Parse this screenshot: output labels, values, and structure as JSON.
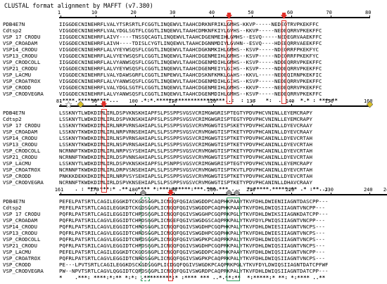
{
  "title": "CLUSTAL format alignment by MAFFT (v7.380)",
  "colors": {
    "red_marker": "#e0302a",
    "green_marker": "#2a9a5a",
    "grey_marker": "#9a9a9a",
    "yellow_marker": "#d8c02a"
  },
  "blocks": [
    {
      "ruler_labels": [
        "1",
        "10",
        "20",
        "30",
        "40",
        "50",
        "60",
        "70",
        "80"
      ],
      "rows": [
        {
          "name": "PDB4E7N",
          "seq": "IIGGDECNINEHRFLVALYTSRSRTLFCGGTLINQEWVLTAAHCDRKNFRIKLGMHS-KKVP-----NEDEQTRVPKEKFFC"
        },
        {
          "name": "Cdtsp2",
          "seq": "VIGGDECNINEHRFLVALYDGLSGTFLCGGTLINQEWVLTAAHCDMKNFKIYLGVHS--KKVP-----NEDEQRRVPKEKFFC"
        },
        {
          "name": "VSP 17 CRODU",
          "seq": "IIGGDECNINEHRFLAIVY----TNSSQCAGTLINQEWVLTAAHCDGENMEIHLGMHS--ESVQ-----NEDEGRVAAEKFFC"
        },
        {
          "name": "VSP_CROADAM",
          "seq": "VIGGDECNINEHRFLAIVH----TDISLCYGTLINQEWVLTAAHCDGNNMDIYLGVHN--ESVQ----HDEEQRRVAEEKFFC"
        },
        {
          "name": "VSP14_CRODU",
          "seq": "VIGGDECNINEHRFLALVYEYWSQSFLCGGTLINQEWVLTAAHCDGKNMKIHLGMHS--KSVP-----NDEQRRFPKEKFYC"
        },
        {
          "name": "VSP13_CRODU",
          "seq": "VIGGDECNINEHRFLALVYEYWSQSFLCGGTLINQEWVLTAAHCDGENMEIHLGMHS--KSVP-----NDEQRRFPKEKFYC"
        },
        {
          "name": "VSP_CRODCOLL",
          "seq": "IIGGDECNINEHRFLALVYANWSQSFLCGGTLINQEWVLTAAHCDGENMDIHLGMHS--KSVP-----NDDEQRRVPKEKFFC"
        },
        {
          "name": "VSP21_CRODU",
          "seq": "VIGGDECNINEHRFLALVYEYWSQSFLCGGTLINQEWVLTAAHCDGENMEIYLGIHS--KSVP-----NDDEQRRVPKEKFFC"
        },
        {
          "name": "VSP_LACMU",
          "seq": "VIGGDECNINEHRFLVALYDAWSGRFLCGGTLINPEWVLTAAHCDSKNFKMKLGAHS--KKVL-----NEDEQIRNPKEKFIC"
        },
        {
          "name": "VSP_CROATROX",
          "seq": "VIGGDECNINEHRFLALVYANWSQSFLCGGTLINQEWVLTAAHCDGENMDIHLGIHS--KSVP-----NEDEQRRVPKEKFFC"
        },
        {
          "name": "VSP_CRODD",
          "seq": "VIGGDECNINEHRFLVALYDGLSGTFLCGGTLINQEWVLTAAHCDGENMEIHLGMHS--KKVP-----NEDEQRRVPKEKFFC"
        },
        {
          "name": "VSP_CRODVEGRA",
          "seq": "VIGGDECNINEHRFLALVYANWSQSFLCGGTLINQEWVLTAAHCDGENMDIHLGMHS--KSVP-----NEDEQRRVPKEKFFC"
        }
      ],
      "consensus": ":****.**********...       .*:*.*****:****************..:  :  .:   *:  .   .  *.* : ***:**"
    },
    {
      "ruler_labels": [
        "81",
        "90",
        "100",
        "110",
        "120",
        "130",
        "140",
        "150",
        "160"
      ],
      "rows": [
        {
          "name": "PDB4E7N",
          "seq": "LSSKNYTLWDKDIMLIRLDSPVKNSKHIAPFSLPSSPPSVGSVCRIMGWGRISPTEGTYPDVPHCVNINLLEYEMCRAPY"
        },
        {
          "name": "Cdtsp2",
          "seq": "LSSKNYTLWDKDIMLIRLDSPVKNSKHIAPFSLPSSPPSVGSVCRIMGWGRISPTEGTYPDVPHCVNINLLEYEMCRAPY"
        },
        {
          "name": "VSP 17 CRODU",
          "seq": "LSSKNYTKWDKDIMLIRLNRPVRNSAHIAPLSLPSSPPSVGSVCRVMGWGTISPSKETYPDVPHCANINLLDYEVCRAAY"
        },
        {
          "name": "VSP_CROADAM",
          "seq": "LSSKNYTKWDKDIMLIRLNRPVRNSEHIAPLSLPSSPPSVGSVCRVMGWGTISPTKETYPDVPHCANINLLDYEVCRAAY"
        },
        {
          "name": "VSP14_CRODU",
          "seq": "LSSKNYTKWDKDIMLIRLNSPVRNSAHIAPLSLPSSPPSVGSVCRIMGWGTISPTKETYPDVPHCANINLLDYEVCRTAH"
        },
        {
          "name": "VSP13_CRODU",
          "seq": "LSSKNYTKWDKDIMLIRLNSPVRNSAHIAPLSLPSSPPSVGSVCRIMGWGTISPTKETYPDVPHCANINLLDYEVCRTAH"
        },
        {
          "name": "VSP_CRODCOLL",
          "seq": "NCRNNFTKWDKDIMLIRLNRPVSYSEHIAPLSLPSSPPSVGSVCRVMGWGTISPTKETYPDVPHCANINLLDYEVCRTAH"
        },
        {
          "name": "VSP21_CRODU",
          "seq": "NCRNNFTKWDKDIMLIRLDSPVNNSAHIAPLSLPSSPPSVGSVCRVMGWGTISPTKETYPDVPHCANINLLDYEVCRTAH"
        },
        {
          "name": "VSP_LACMU",
          "seq": "LSSKNYTLWDKDIMLIRLDSPVKNSKHIAPFSLPSNPPSVGSVCRIMGWGRISPTEGTYPDVPHCVNINLLEYEMCRAPY"
        },
        {
          "name": "VSP_CROATROX",
          "seq": "NCRNNFTKWDKDIMLIRLDRPVSNSEHIAPLSLPSSPPSVGSVCRVMGWGTISPTKVTLPDVPHCANINLLDYEVCRTAH"
        },
        {
          "name": "VSP_CRODD",
          "seq": "PNKKKDEKKDKDIMLIRLNRPVSYSEHIAPLSLPSSPPSVGSVCRVMGWGTISPTKETYPDVPHCANINLLDYEVCRTAH"
        },
        {
          "name": "VSP_CRODVEGRA",
          "seq": "NCRNNFTKWDKDIMLIRLDSPVKNSEHIAPLSLPSSPPSVGSVCRVMGWGTISPTKETYPDVPHCANINLLDHAVCRAAY"
        }
      ],
      "consensus": "     . : ***:***:* .**.  **** *:*** ******:***.***.*** . .  *:*****.*****:** .* :**..:"
    },
    {
      "ruler_labels": [
        "161",
        "170",
        "180",
        "190",
        "200",
        "210",
        "220",
        "230",
        "240",
        "245"
      ],
      "rows": [
        {
          "name": "PDB4E7N",
          "seq": "PEFELPATSRTLCAGILEGGKDTCKGDSGGPLICNGQFQGIASWGDDPCAQPHKPAAYTKVFDHLDWIENIIAGNTDASCPP---"
        },
        {
          "name": "Cdtsp2",
          "seq": "PEFELPATSRTLCAGILEGGKDTCKGDSGGPLICNGQFQGIVSWGDDPCAQPHKPAAYTKVFDHLDWIQSIIAGNTVNCPP---"
        },
        {
          "name": "VSP 17 CRODU",
          "seq": "PQFRLPATSRTLCAGILEGGIDTCHRDSGGPLICNGQFQGIVSWGGHPCGQPRKPGLYTKVFDHLDWIKSIIAGNKDATCPP---"
        },
        {
          "name": "VSP_CROADAM",
          "seq": "PQFRLPATSRILCAGVLEGGIDTCHRDSGGPLICNGEFQGIVSWGDGSCAQPRKPALYTKVFDYLPWIQSIIAGNTVNCPP---"
        },
        {
          "name": "VSP14_CRODU",
          "seq": "PQFRLPATSRILCAGVLEGGIDTCHRDSGGPLICNGQFQGIVSWGDHPCGQPHKPALYTKVFDHLDWIESIIAGNTVNCPS---"
        },
        {
          "name": "VSP13_CRODU",
          "seq": "PQFRLPATSRILCAGVLEGGIDTCHRDSGGPLICNGQFQGIVSWGDHPCGQPHKPALYTKVFDHLDWIESIIAGNTVNCPS---"
        },
        {
          "name": "VSP_CRODCOLL",
          "seq": "PQFRLPATSRTLCAGVLEGGIDTCNRDSGGPLICNGQFQGIVSWGPKPCAQPRKPALYTKVFDHLDWIQSIIAGNTVNCPS---"
        },
        {
          "name": "VSP21_CRODU",
          "seq": "PQFRLPATSRILCAGVLEGGIDTCHRDSGGPLICNGQFQGIVSWGDHPCGQPRKPALYTKVFDHLDWIQSIIAGNTVNCPS---"
        },
        {
          "name": "VSP_LACMU",
          "seq": "PEFELPATSRTLCAGILEGGKDTCKGDSGGPLICNGQFQGIVSWGDDPCAQPHKPAAYTKVFDHLDWIQSIIAGNTVNCPP---"
        },
        {
          "name": "VSP_CROATROX",
          "seq": "PQFRLPATSRTLCAGVLEGGIDTCNRDSGGPLICNGQFQGIVSWGPKPCAQPRKPALYTKVFDHLDWIQSIIAGNTVNCPS---"
        },
        {
          "name": "VSP_CRODD",
          "seq": "PE---LPVTSRTLCAGILEGGKDSCKGDSGGPLICDGQFQGIVSWGDKPCAQPRKPGLYTKVFDYLDWIQSIIAGNTDATCPFWF"
        },
        {
          "name": "VSP_CRODVEGRA",
          "seq": "PW--NPVTSRTLCAGVLQGGIDTCQRDSGGPLICNGQFQGIVSWGRDPCAQPRKPALYTKVFDHLDWIQSIIAGNTDATCPP---"
        }
      ],
      "consensus": "*    .***: ****:*:** *:*: .*********:* :**** *** ..*.**:**  *:*****:* **: *:**** ..**"
    }
  ]
}
